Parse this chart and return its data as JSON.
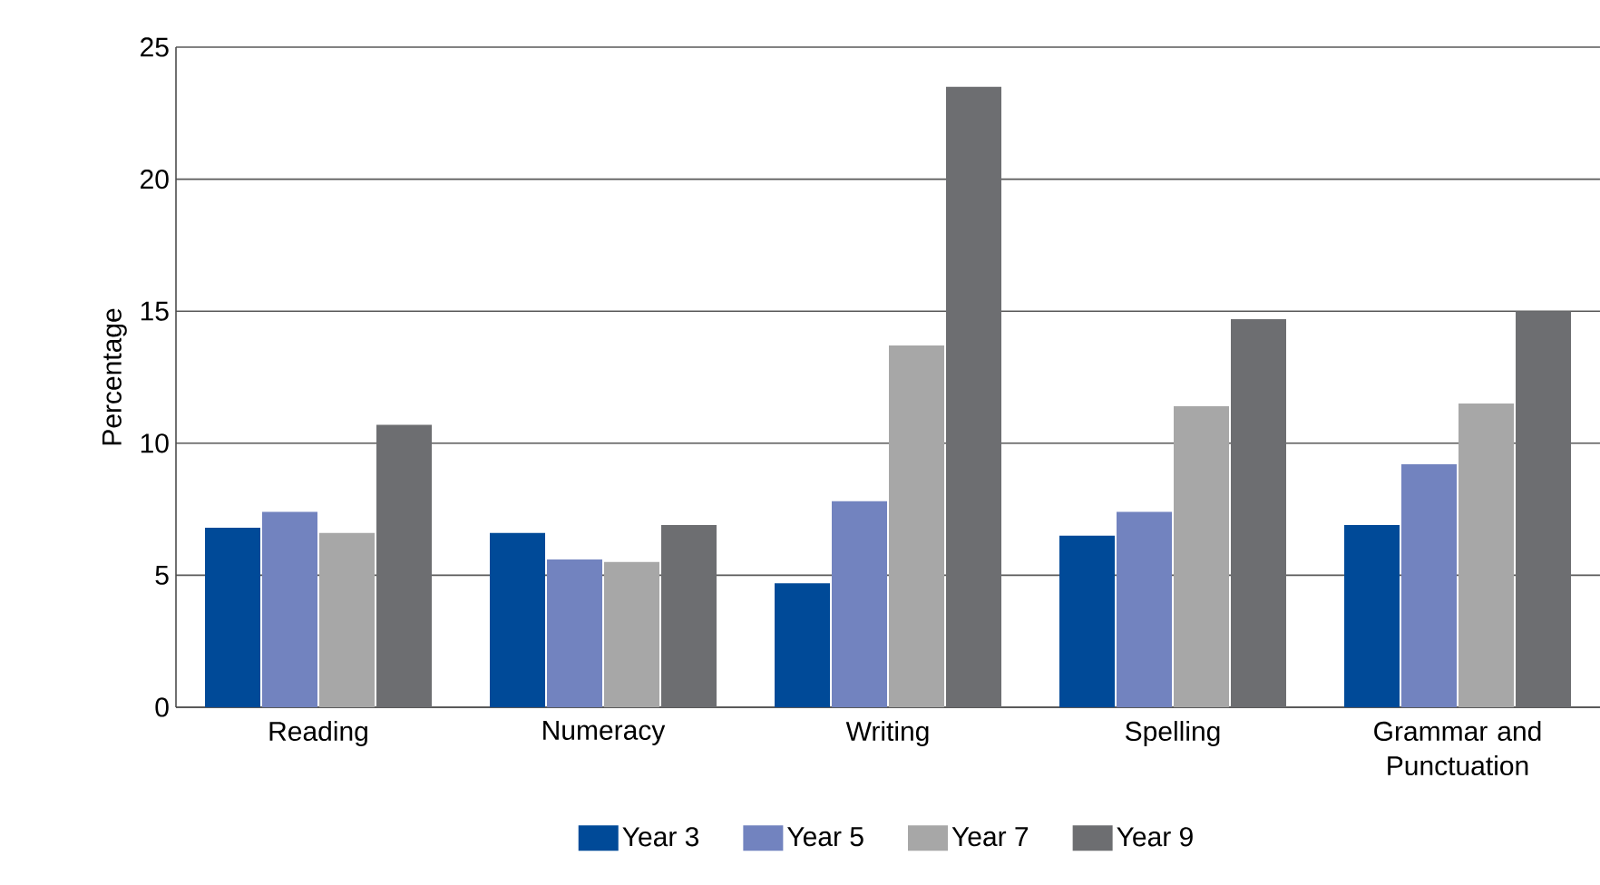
{
  "chart_data": {
    "type": "bar",
    "ylabel": "Percentage",
    "categories": [
      "Reading",
      "Numeracy",
      "Writing",
      "Spelling",
      "Grammar and Punctuation"
    ],
    "series": [
      {
        "name": "Year 3",
        "color": "#004a98",
        "values": [
          6.8,
          6.6,
          4.7,
          6.5,
          6.9
        ]
      },
      {
        "name": "Year 5",
        "color": "#7283bf",
        "values": [
          7.4,
          5.6,
          7.8,
          7.4,
          9.2
        ]
      },
      {
        "name": "Year 7",
        "color": "#a7a7a7",
        "values": [
          6.6,
          5.5,
          13.7,
          11.4,
          11.5
        ]
      },
      {
        "name": "Year 9",
        "color": "#6d6e71",
        "values": [
          10.7,
          6.9,
          23.5,
          14.7,
          15.0
        ]
      }
    ],
    "ylim": [
      0,
      25
    ],
    "yticks": [
      0,
      5,
      10,
      15,
      20,
      25
    ],
    "grid": "y",
    "legend": "bottom"
  }
}
